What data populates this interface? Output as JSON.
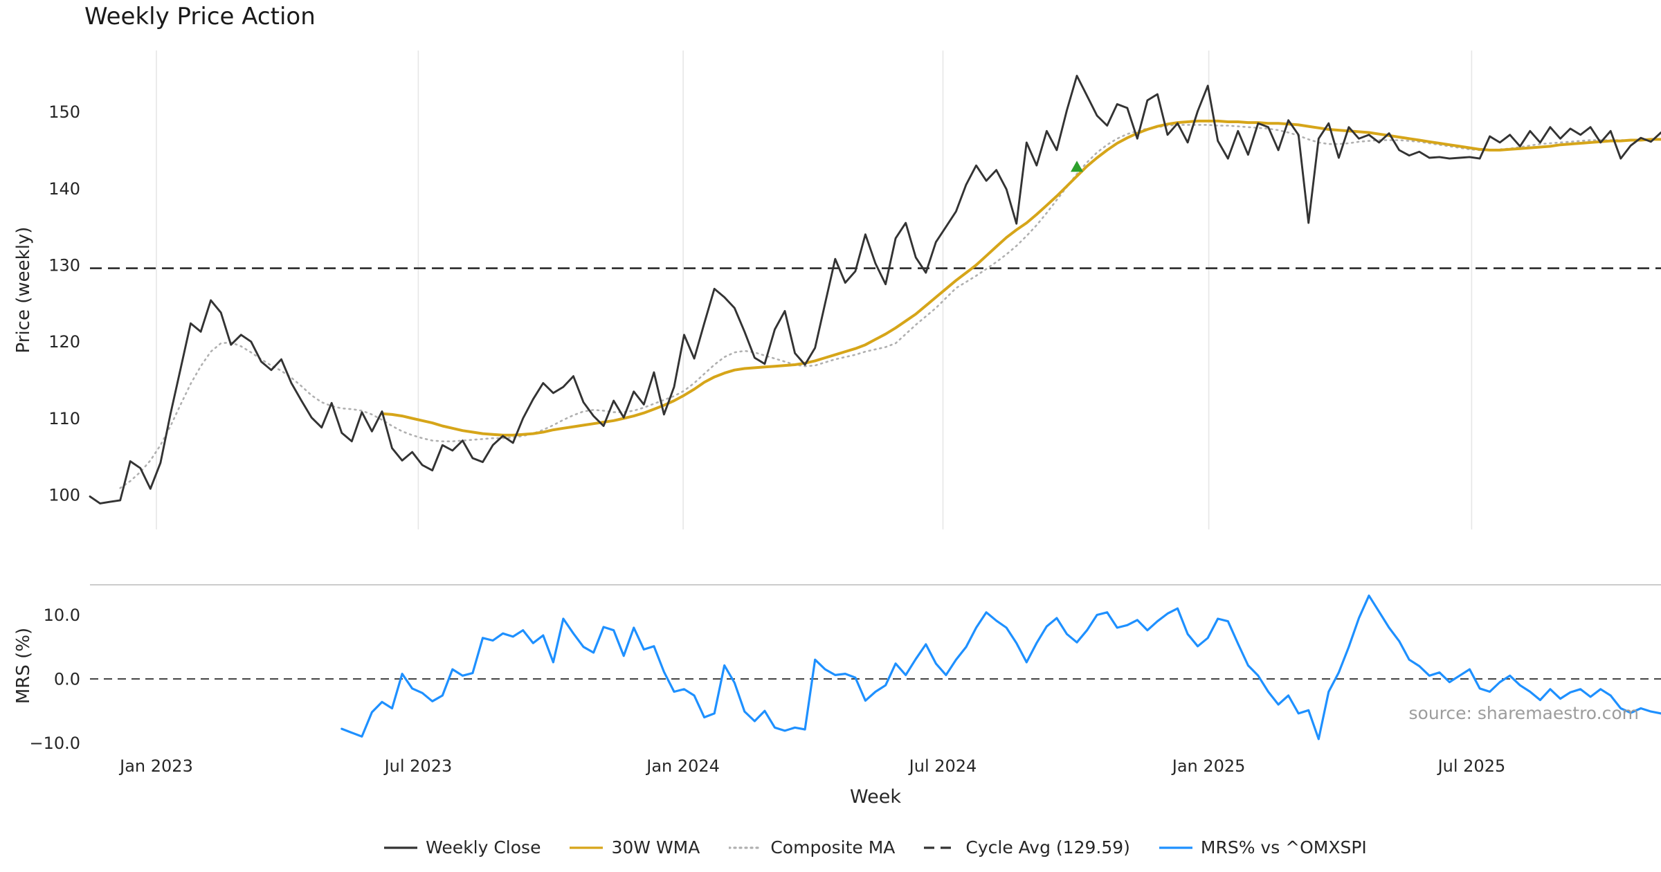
{
  "title": "Weekly Price Action",
  "source_note": "source: sharemaestro.com",
  "colors": {
    "weekly_close": "#333333",
    "wma_30w": "#d6a519",
    "composite_ma": "#b0b0b0",
    "cycle_avg": "#333333",
    "mrs": "#1e90ff",
    "signal_marker": "#2ca02c",
    "grid": "#e6e6e6",
    "spine": "#c4c4c4",
    "tick_text": "#262626",
    "source_text": "#9c9c9c"
  },
  "x_axis": {
    "label": "Week",
    "ticks": [
      {
        "x": 6.6,
        "label": "Jan 2023"
      },
      {
        "x": 32.6,
        "label": "Jul 2023"
      },
      {
        "x": 58.9,
        "label": "Jan 2024"
      },
      {
        "x": 84.7,
        "label": "Jul 2024"
      },
      {
        "x": 111.1,
        "label": "Jan 2025"
      },
      {
        "x": 137.2,
        "label": "Jul 2025"
      }
    ]
  },
  "legend": [
    {
      "label": "Weekly Close",
      "color": "#333333",
      "style": "solid"
    },
    {
      "label": "30W WMA",
      "color": "#d6a519",
      "style": "solid"
    },
    {
      "label": "Composite MA",
      "color": "#b0b0b0",
      "style": "dotted"
    },
    {
      "label": "Cycle Avg (129.59)",
      "color": "#333333",
      "style": "dashed"
    },
    {
      "label": "MRS% vs ^OMXSPI",
      "color": "#1e90ff",
      "style": "solid"
    }
  ],
  "chart_data": [
    {
      "type": "line",
      "panel": "price",
      "title": "Weekly Price Action",
      "ylabel": "Price (weekly)",
      "xlabel": "Week",
      "x_unit": "week index (weekly data, Nov 2022 - Nov 2025)",
      "xlim": [
        0,
        156
      ],
      "ylim": [
        95.5,
        158
      ],
      "grid": "vertical-only",
      "legend_position": "bottom-center",
      "yticks": [
        {
          "v": 100,
          "label": "100"
        },
        {
          "v": 110,
          "label": "110"
        },
        {
          "v": 120,
          "label": "120"
        },
        {
          "v": 130,
          "label": "130"
        },
        {
          "v": 140,
          "label": "140"
        },
        {
          "v": 150,
          "label": "150"
        }
      ],
      "reference_lines": [
        {
          "name": "Cycle Avg",
          "value": 129.59,
          "style": "dashed",
          "color": "#333333"
        }
      ],
      "markers": [
        {
          "name": "buy-signal",
          "shape": "triangle-up",
          "x": 98,
          "y": 142.8,
          "color": "#2ca02c"
        }
      ],
      "series": [
        {
          "id": "weekly_close",
          "name": "Weekly Close",
          "color": "#333333",
          "style": "solid",
          "width": 2.9,
          "start_x": 0,
          "values": [
            99.8,
            98.9,
            99.1,
            99.3,
            104.4,
            103.5,
            100.8,
            104.2,
            110.6,
            116.5,
            122.4,
            121.3,
            125.4,
            123.8,
            119.6,
            120.9,
            120.0,
            117.4,
            116.3,
            117.7,
            114.6,
            112.3,
            110.1,
            108.8,
            112.0,
            108.1,
            107.0,
            110.8,
            108.3,
            110.9,
            106.1,
            104.5,
            105.6,
            103.9,
            103.2,
            106.5,
            105.8,
            107.1,
            104.8,
            104.3,
            106.5,
            107.7,
            106.8,
            110.0,
            112.5,
            114.6,
            113.3,
            114.1,
            115.5,
            112.1,
            110.3,
            109.0,
            112.3,
            110.1,
            113.5,
            111.8,
            116.0,
            110.5,
            114.1,
            120.9,
            117.8,
            122.4,
            126.9,
            125.8,
            124.4,
            121.3,
            117.9,
            117.1,
            121.6,
            124.0,
            118.5,
            117.0,
            119.2,
            125.0,
            130.8,
            127.7,
            129.2,
            134.0,
            130.2,
            127.5,
            133.5,
            135.5,
            131.0,
            129.0,
            133.0,
            135.0,
            137.0,
            140.5,
            143.0,
            141.0,
            142.4,
            139.9,
            135.4,
            146.0,
            143.0,
            147.5,
            145.0,
            150.2,
            154.7,
            152.1,
            149.5,
            148.2,
            151.0,
            150.5,
            146.5,
            151.5,
            152.3,
            147.0,
            148.5,
            146.0,
            150.1,
            153.4,
            146.2,
            143.9,
            147.5,
            144.4,
            148.5,
            148.0,
            145.0,
            148.9,
            147.0,
            135.5,
            146.5,
            148.5,
            144.0,
            148.0,
            146.5,
            147.0,
            146.0,
            147.2,
            145.0,
            144.3,
            144.8,
            144.0,
            144.1,
            143.9,
            144.0,
            144.1,
            143.9,
            146.8,
            146.0,
            147.0,
            145.5,
            147.5,
            146.0,
            148.0,
            146.5,
            147.8,
            147.0,
            148.0,
            146.0,
            147.5,
            143.9,
            145.6,
            146.6,
            146.1,
            147.3
          ]
        },
        {
          "id": "wma_30w",
          "name": "30W WMA",
          "color": "#d6a519",
          "style": "solid",
          "width": 4,
          "start_x": 29,
          "values": [
            110.6,
            110.5,
            110.3,
            110.0,
            109.7,
            109.4,
            109.0,
            108.7,
            108.4,
            108.2,
            108.0,
            107.9,
            107.8,
            107.8,
            107.9,
            108.0,
            108.2,
            108.5,
            108.7,
            108.9,
            109.1,
            109.3,
            109.5,
            109.7,
            110.0,
            110.3,
            110.7,
            111.2,
            111.7,
            112.3,
            113.0,
            113.8,
            114.7,
            115.4,
            115.9,
            116.3,
            116.5,
            116.6,
            116.7,
            116.8,
            116.9,
            117.0,
            117.2,
            117.5,
            117.9,
            118.3,
            118.7,
            119.1,
            119.6,
            120.3,
            121.0,
            121.8,
            122.7,
            123.6,
            124.7,
            125.8,
            126.9,
            128.0,
            129.0,
            130.0,
            131.2,
            132.4,
            133.6,
            134.6,
            135.5,
            136.6,
            137.8,
            139.0,
            140.3,
            141.6,
            142.9,
            144.0,
            145.0,
            145.9,
            146.6,
            147.2,
            147.7,
            148.1,
            148.4,
            148.6,
            148.7,
            148.8,
            148.8,
            148.8,
            148.7,
            148.7,
            148.6,
            148.6,
            148.5,
            148.5,
            148.4,
            148.3,
            148.1,
            147.9,
            147.7,
            147.6,
            147.5,
            147.4,
            147.3,
            147.1,
            146.9,
            146.7,
            146.5,
            146.3,
            146.1,
            145.9,
            145.7,
            145.5,
            145.3,
            145.1,
            145.0,
            145.0,
            145.1,
            145.2,
            145.3,
            145.4,
            145.5,
            145.7,
            145.8,
            145.9,
            146.0,
            146.1,
            146.2,
            146.2,
            146.3,
            146.3,
            146.4,
            146.4
          ]
        },
        {
          "id": "composite_ma",
          "name": "Composite MA",
          "color": "#b0b0b0",
          "style": "dotted",
          "width": 2.6,
          "start_x": 3,
          "values": [
            100.9,
            101.8,
            103.0,
            104.5,
            106.5,
            109.0,
            111.8,
            114.5,
            116.8,
            118.7,
            119.8,
            119.9,
            119.4,
            118.6,
            117.7,
            116.9,
            116.2,
            115.3,
            114.2,
            113.0,
            112.1,
            111.6,
            111.3,
            111.2,
            111.0,
            110.5,
            109.8,
            109.0,
            108.3,
            107.8,
            107.4,
            107.1,
            107.0,
            107.0,
            107.1,
            107.2,
            107.3,
            107.4,
            107.4,
            107.5,
            107.7,
            108.0,
            108.5,
            109.1,
            109.8,
            110.4,
            110.9,
            111.1,
            111.0,
            110.8,
            110.8,
            111.0,
            111.4,
            111.9,
            112.4,
            112.9,
            113.6,
            114.6,
            115.8,
            117.0,
            118.0,
            118.6,
            118.8,
            118.6,
            118.2,
            117.8,
            117.4,
            117.0,
            116.8,
            116.9,
            117.3,
            117.7,
            118.0,
            118.3,
            118.7,
            119.0,
            119.3,
            119.8,
            121.0,
            122.2,
            123.3,
            124.4,
            125.7,
            127.0,
            127.8,
            128.6,
            129.5,
            130.4,
            131.4,
            132.5,
            133.8,
            135.2,
            136.8,
            138.5,
            140.2,
            141.9,
            143.4,
            144.7,
            145.7,
            146.5,
            147.1,
            147.5,
            147.8,
            148.0,
            148.2,
            148.3,
            148.3,
            148.3,
            148.3,
            148.2,
            148.2,
            148.1,
            148.0,
            147.9,
            147.8,
            147.6,
            147.3,
            146.9,
            146.4,
            146.0,
            145.8,
            145.8,
            145.9,
            146.1,
            146.2,
            146.3,
            146.3,
            146.3,
            146.2,
            146.1,
            145.9,
            145.7,
            145.5,
            145.3,
            145.1,
            145.0,
            145.0,
            145.1,
            145.2,
            145.4,
            145.6,
            145.8,
            145.9,
            146.0,
            146.1,
            146.2,
            146.3,
            146.3,
            146.3,
            146.3,
            146.3,
            146.4,
            146.4,
            146.4
          ]
        }
      ]
    },
    {
      "type": "line",
      "panel": "mrs",
      "ylabel": "MRS (%)",
      "xlabel": "Week",
      "xlim": [
        0,
        156
      ],
      "ylim": [
        -10.6,
        14.7
      ],
      "grid": "none",
      "yticks": [
        {
          "v": 10,
          "label": "10.0"
        },
        {
          "v": 0,
          "label": "0.0"
        },
        {
          "v": -10,
          "label": "−10.0"
        }
      ],
      "reference_lines": [
        {
          "name": "zero",
          "value": 0,
          "style": "dashed",
          "color": "#444444"
        }
      ],
      "series": [
        {
          "id": "mrs",
          "name": "MRS% vs ^OMXSPI",
          "color": "#1e90ff",
          "style": "solid",
          "width": 3.2,
          "start_x": 25,
          "values": [
            -7.8,
            -8.4,
            -9.0,
            -5.2,
            -3.6,
            -4.6,
            0.8,
            -1.5,
            -2.2,
            -3.5,
            -2.6,
            1.5,
            0.5,
            0.9,
            6.4,
            6.0,
            7.1,
            6.6,
            7.6,
            5.6,
            6.8,
            2.6,
            9.4,
            7.1,
            5.0,
            4.1,
            8.1,
            7.6,
            3.6,
            8.0,
            4.6,
            5.1,
            1.1,
            -2.0,
            -1.6,
            -2.6,
            -6.0,
            -5.4,
            2.1,
            -0.6,
            -5.1,
            -6.6,
            -5.0,
            -7.6,
            -8.1,
            -7.6,
            -7.9,
            3.0,
            1.5,
            0.6,
            0.8,
            0.2,
            -3.4,
            -2.0,
            -1.0,
            2.4,
            0.6,
            3.1,
            5.4,
            2.4,
            0.6,
            3.0,
            5.0,
            8.0,
            10.4,
            9.1,
            8.0,
            5.6,
            2.6,
            5.6,
            8.2,
            9.5,
            7.0,
            5.7,
            7.6,
            10.0,
            10.4,
            8.0,
            8.4,
            9.2,
            7.6,
            9.0,
            10.2,
            11.0,
            7.0,
            5.1,
            6.4,
            9.4,
            9.0,
            5.5,
            2.1,
            0.5,
            -2.0,
            -4.0,
            -2.6,
            -5.4,
            -4.9,
            -9.4,
            -2.0,
            1.0,
            5.0,
            9.5,
            13.0,
            10.5,
            8.0,
            5.9,
            3.0,
            2.0,
            0.5,
            1.0,
            -0.5,
            0.5,
            1.5,
            -1.5,
            -2.0,
            -0.5,
            0.5,
            -1.0,
            -2.0,
            -3.3,
            -1.6,
            -3.1,
            -2.1,
            -1.6,
            -2.8,
            -1.6,
            -2.6,
            -4.6,
            -5.3,
            -4.6,
            -5.1,
            -5.4
          ]
        }
      ]
    }
  ]
}
